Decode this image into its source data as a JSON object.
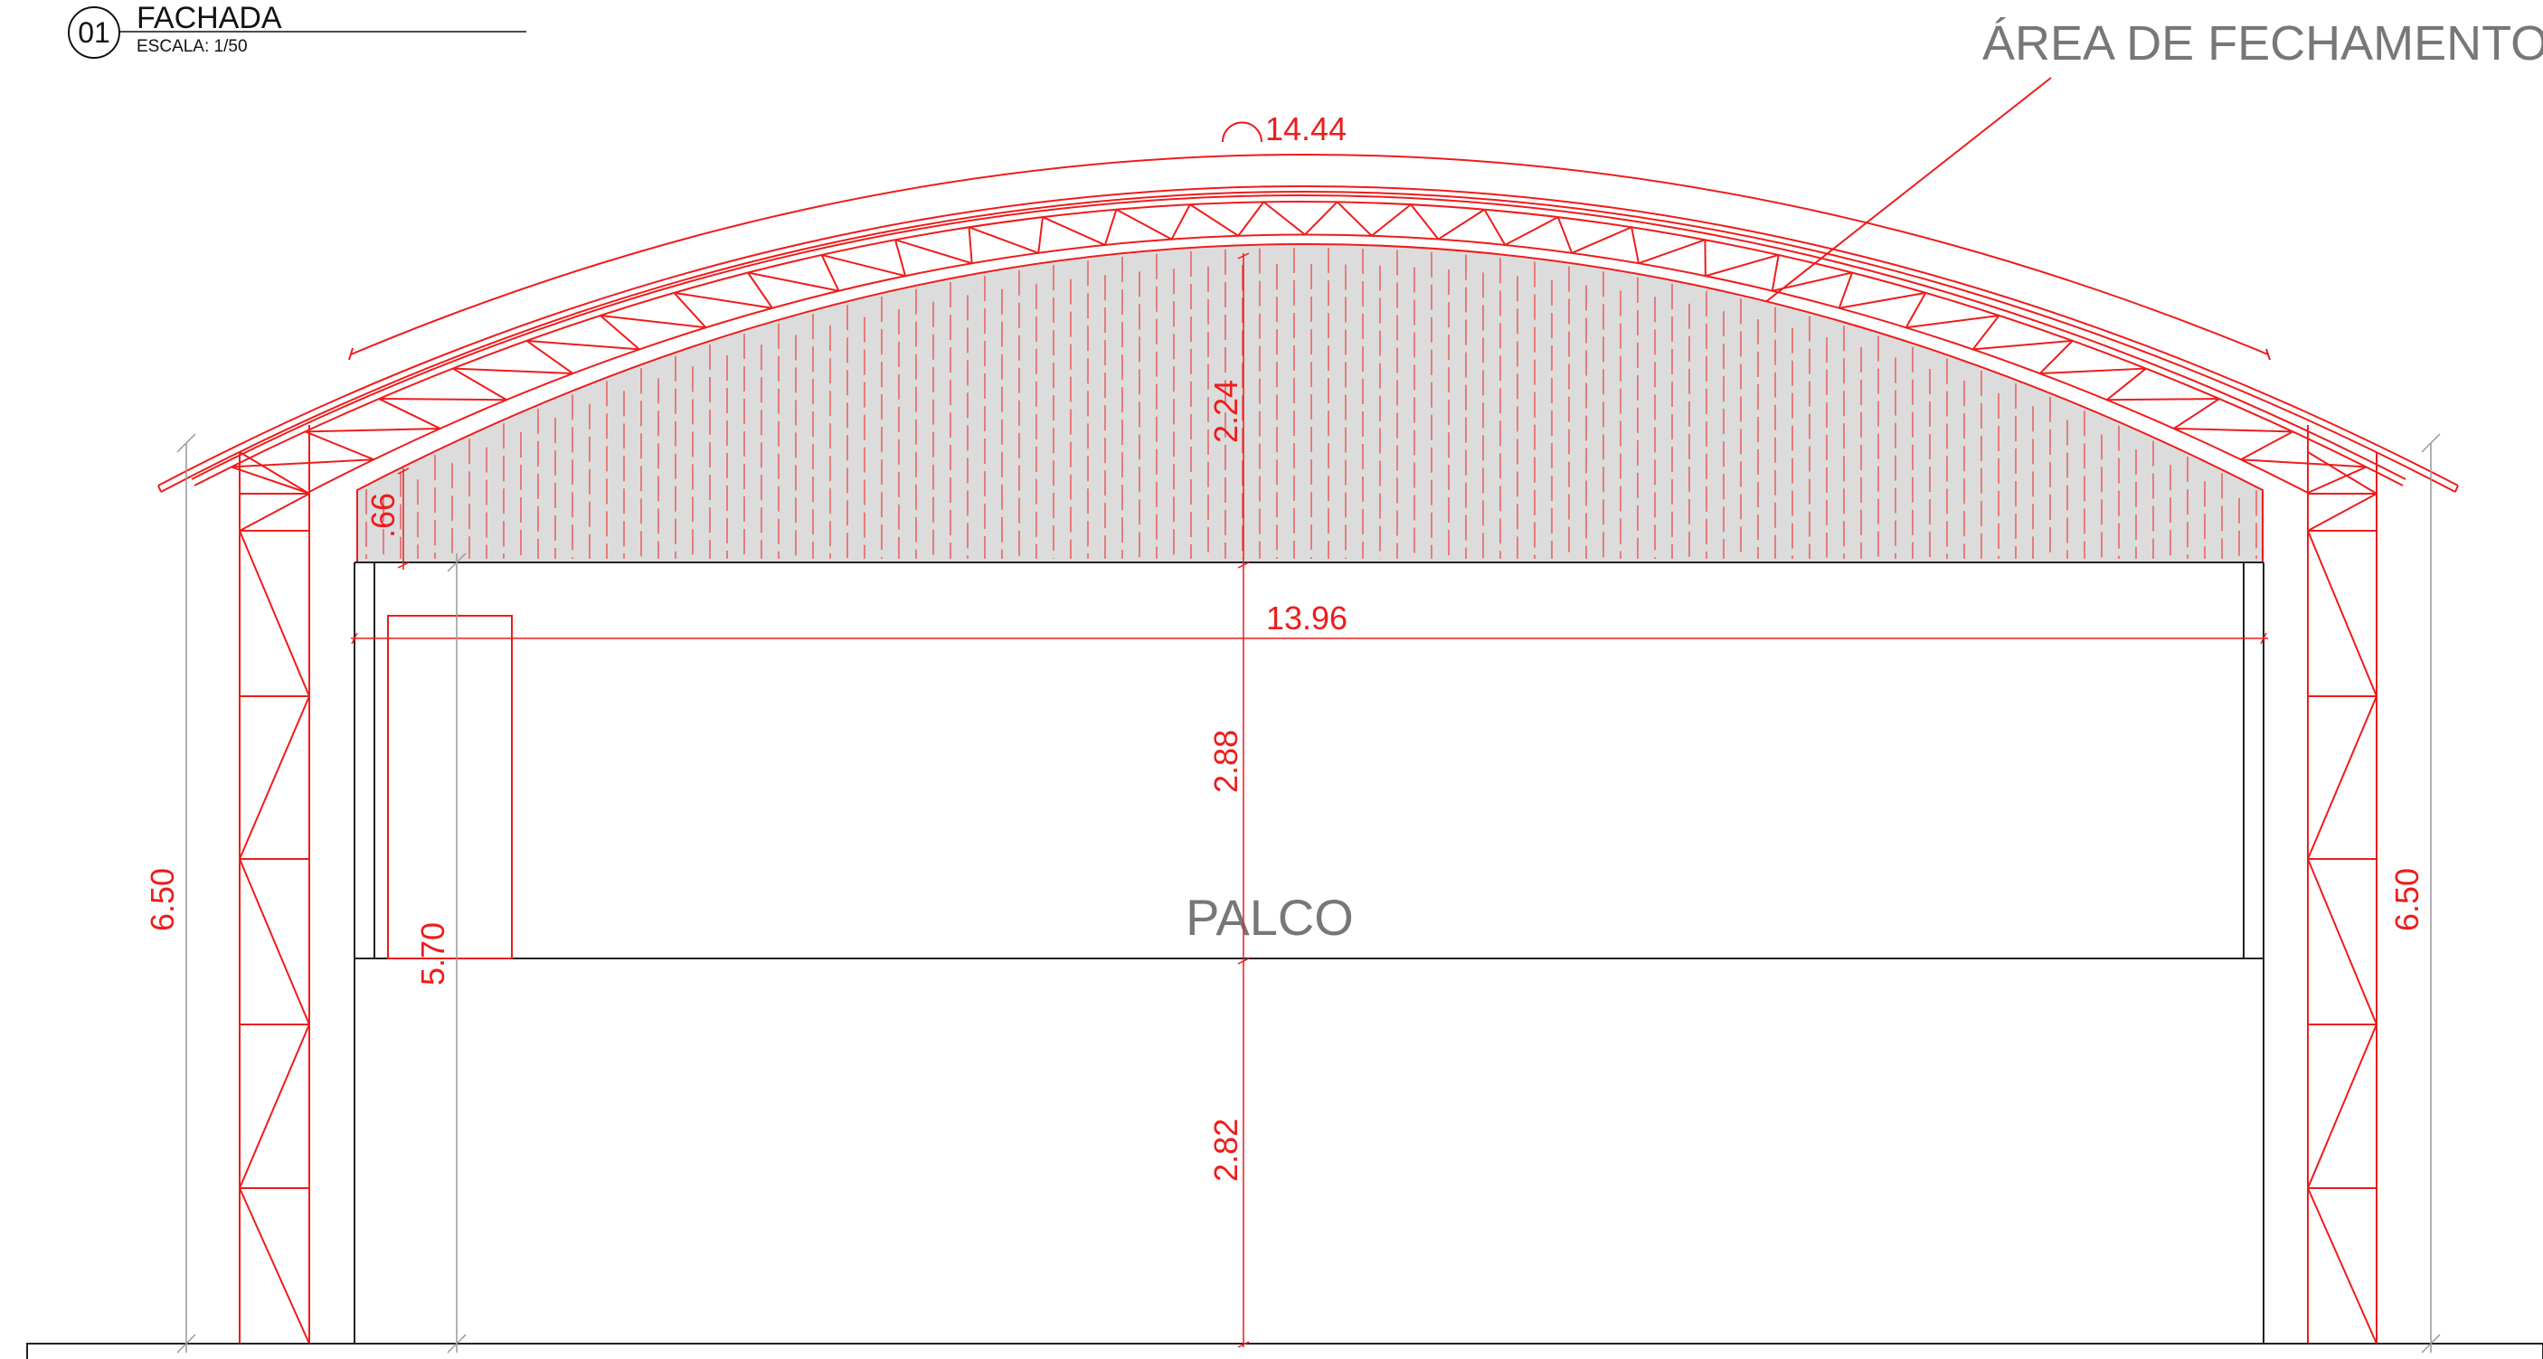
{
  "title_block": {
    "number": "01",
    "title": "FACHADA",
    "scale": "ESCALA: 1/50"
  },
  "labels": {
    "closure_area": "ÁREA DE FECHAMENTO",
    "stage": "PALCO"
  },
  "dimensions": {
    "arc_length": "14.44",
    "height_gable": "2.24",
    "height_small": ".66",
    "width_opening": "13.96",
    "height_opening": "2.88",
    "height_stage": "2.82",
    "column_left": "6.50",
    "column_right": "6.50",
    "door_height": "5.70"
  },
  "colors": {
    "structure": "#ee1c1c",
    "walls": "#222222",
    "fill": "#dcdcdc",
    "label": "#777777"
  }
}
